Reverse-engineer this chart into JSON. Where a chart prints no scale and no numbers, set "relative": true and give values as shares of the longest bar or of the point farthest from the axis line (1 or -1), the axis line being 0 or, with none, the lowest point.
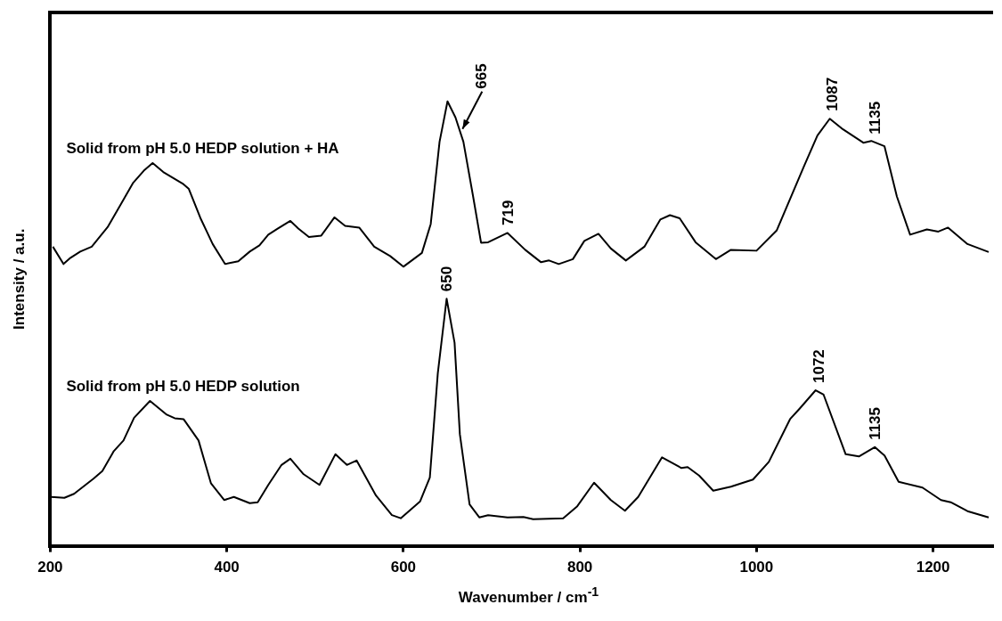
{
  "chart_data": {
    "type": "line",
    "xlabel": "Wavenumber / cm$^{-1}$",
    "ylabel": "Intensity / a.u.",
    "relative": true,
    "legend": false,
    "grid": false,
    "xlim": [
      200,
      1268
    ],
    "xticks": [
      200,
      400,
      600,
      800,
      1000,
      1200
    ],
    "series": [
      {
        "name": "Solid from pH 5.0 HEDP solution + HA",
        "color": "#000000",
        "x": [
          203,
          215,
          223,
          234,
          247,
          265,
          281,
          294,
          306,
          316,
          328,
          350,
          357,
          370,
          384,
          398,
          413,
          426,
          437,
          447,
          458,
          472,
          481,
          493,
          507,
          522,
          534,
          550,
          567,
          585,
          600,
          621,
          631,
          641,
          650,
          659,
          668,
          679,
          688,
          696,
          718,
          738,
          756,
          765,
          776,
          792,
          805,
          821,
          835,
          852,
          873,
          891,
          902,
          913,
          931,
          954,
          971,
          1000,
          1023,
          1054,
          1069,
          1083,
          1098,
          1121,
          1130,
          1145,
          1159,
          1174,
          1193,
          1206,
          1217,
          1239,
          1263
        ],
        "values": [
          0.673,
          0.634,
          0.648,
          0.662,
          0.673,
          0.717,
          0.772,
          0.817,
          0.844,
          0.861,
          0.841,
          0.815,
          0.803,
          0.738,
          0.679,
          0.634,
          0.64,
          0.662,
          0.676,
          0.7,
          0.714,
          0.731,
          0.714,
          0.695,
          0.698,
          0.739,
          0.72,
          0.716,
          0.673,
          0.652,
          0.628,
          0.659,
          0.724,
          0.909,
          1,
          0.964,
          0.909,
          0.786,
          0.682,
          0.683,
          0.704,
          0.666,
          0.638,
          0.642,
          0.634,
          0.645,
          0.686,
          0.702,
          0.669,
          0.642,
          0.673,
          0.734,
          0.744,
          0.737,
          0.683,
          0.645,
          0.666,
          0.664,
          0.71,
          0.855,
          0.923,
          0.961,
          0.937,
          0.907,
          0.911,
          0.899,
          0.786,
          0.7,
          0.712,
          0.707,
          0.716,
          0.679,
          0.661
        ]
      },
      {
        "name": "Solid from pH 5.0 HEDP solution",
        "color": "#000000",
        "x": [
          201,
          216,
          227,
          249,
          259,
          272,
          283,
          295,
          313,
          332,
          341,
          351,
          368,
          382,
          397,
          408,
          426,
          435,
          447,
          462,
          472,
          487,
          505,
          523,
          536,
          547,
          569,
          587,
          597,
          619,
          630,
          639,
          649,
          658,
          664,
          675,
          686,
          696,
          718,
          736,
          747,
          781,
          797,
          816,
          835,
          851,
          866,
          893,
          915,
          922,
          935,
          951,
          971,
          996,
          1014,
          1038,
          1049,
          1067,
          1076,
          1101,
          1116,
          1134,
          1145,
          1161,
          1188,
          1209,
          1220,
          1239,
          1263
        ],
        "values": [
          0.11,
          0.108,
          0.117,
          0.151,
          0.168,
          0.213,
          0.237,
          0.288,
          0.326,
          0.295,
          0.287,
          0.285,
          0.237,
          0.141,
          0.103,
          0.11,
          0.096,
          0.098,
          0.137,
          0.182,
          0.196,
          0.161,
          0.137,
          0.206,
          0.182,
          0.192,
          0.113,
          0.069,
          0.062,
          0.1,
          0.154,
          0.388,
          0.556,
          0.457,
          0.251,
          0.093,
          0.064,
          0.069,
          0.064,
          0.065,
          0.06,
          0.062,
          0.089,
          0.142,
          0.103,
          0.079,
          0.11,
          0.199,
          0.175,
          0.177,
          0.158,
          0.124,
          0.133,
          0.149,
          0.189,
          0.285,
          0.309,
          0.35,
          0.34,
          0.206,
          0.201,
          0.222,
          0.203,
          0.144,
          0.131,
          0.103,
          0.098,
          0.078,
          0.064
        ]
      }
    ],
    "annotations": [
      {
        "text": "665",
        "x": 665,
        "y": 0.93
      },
      {
        "text": "719",
        "x": 719,
        "y": 0.705
      },
      {
        "text": "1087",
        "x": 1087,
        "y": 0.962
      },
      {
        "text": "1135",
        "x": 1135,
        "y": 0.91
      },
      {
        "text": "650",
        "x": 650,
        "y": 0.556
      },
      {
        "text": "1072",
        "x": 1072,
        "y": 0.35
      },
      {
        "text": "1135",
        "x": 1135,
        "y": 0.222
      }
    ]
  }
}
